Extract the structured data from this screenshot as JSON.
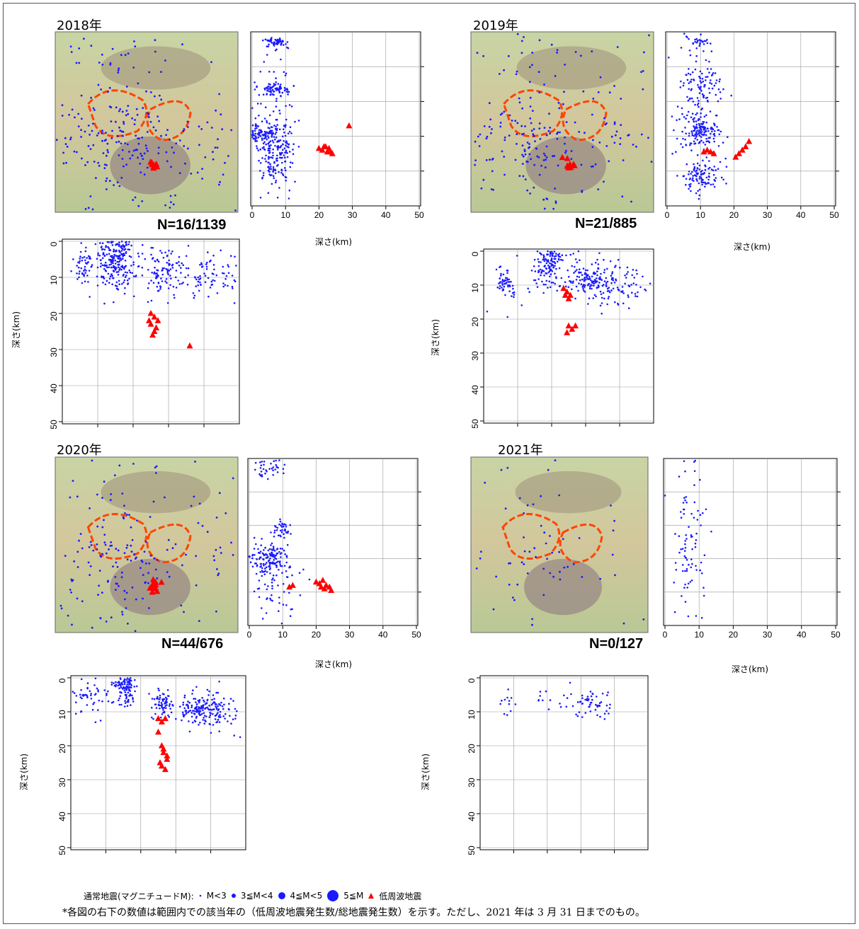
{
  "colors": {
    "normal": "#1a1aff",
    "lowfreq": "#ff0000",
    "grid": "#999999"
  },
  "axis": {
    "xlabel": "深さ(km)",
    "ylabel": "深さ(km)"
  },
  "panels": [
    {
      "year": "2018年",
      "n_label": "N=16/1139"
    },
    {
      "year": "2019年",
      "n_label": "N=21/885"
    },
    {
      "year": "2020年",
      "n_label": "N=44/676"
    },
    {
      "year": "2021年",
      "n_label": "N=0/127"
    }
  ],
  "legend": {
    "prefix": "通常地震(マグニチュードM):",
    "items": [
      "M<3",
      "3≦M<4",
      "4≦M<5",
      "5≦M"
    ],
    "lowfreq": "低周波地震"
  },
  "note": "*各図の右下の数値は範囲内での該当年の（低周波地震発生数/総地震発生数）を示す。ただし、2021 年は 3 月 31 日までのもの。",
  "chart_data": [
    {
      "type": "scatter",
      "year": "2018年",
      "ew_section": {
        "xlabel": "深さ(km)",
        "xlim": [
          0,
          50
        ],
        "xticks": [
          0,
          10,
          20,
          30,
          40,
          50
        ],
        "normal_clusters": [
          {
            "depth": 7,
            "depth_sd": 1.5,
            "pos": 0.06,
            "pos_sd": 0.015,
            "n": 55
          },
          {
            "depth": 7,
            "depth_sd": 2.5,
            "pos": 0.33,
            "pos_sd": 0.02,
            "n": 65
          },
          {
            "depth": 4,
            "depth_sd": 3,
            "pos": 0.58,
            "pos_sd": 0.03,
            "n": 90
          },
          {
            "depth": 7,
            "depth_sd": 2.5,
            "pos": 0.72,
            "pos_sd": 0.08,
            "n": 140
          },
          {
            "depth": 7,
            "depth_sd": 4,
            "pos": 0.5,
            "pos_sd": 0.25,
            "n": 90
          }
        ],
        "lowfreq": [
          [
            20,
            0.67
          ],
          [
            21,
            0.68
          ],
          [
            22,
            0.66
          ],
          [
            23,
            0.67
          ],
          [
            24,
            0.7
          ],
          [
            22.5,
            0.69
          ],
          [
            21.5,
            0.66
          ],
          [
            23.5,
            0.69
          ],
          [
            29,
            0.54
          ]
        ]
      },
      "ns_section": {
        "ylabel": "深さ(km)",
        "ylim": [
          0,
          50
        ],
        "yticks": [
          0,
          10,
          20,
          30,
          40,
          50
        ],
        "normal_clusters": [
          {
            "pos": 0.12,
            "pos_sd": 0.02,
            "depth": 7,
            "depth_sd": 2,
            "n": 40
          },
          {
            "pos": 0.3,
            "pos_sd": 0.05,
            "depth": 5,
            "depth_sd": 4,
            "n": 200
          },
          {
            "pos": 0.57,
            "pos_sd": 0.05,
            "depth": 8,
            "depth_sd": 3,
            "n": 60
          },
          {
            "pos": 0.8,
            "pos_sd": 0.12,
            "depth": 10,
            "depth_sd": 3,
            "n": 90
          },
          {
            "pos": 0.45,
            "pos_sd": 0.3,
            "depth": 8,
            "depth_sd": 5,
            "n": 80
          }
        ],
        "lowfreq": [
          [
            0.5,
            20
          ],
          [
            0.52,
            21
          ],
          [
            0.5,
            23
          ],
          [
            0.53,
            24
          ],
          [
            0.51,
            26
          ],
          [
            0.49,
            22
          ],
          [
            0.54,
            22
          ],
          [
            0.52,
            25
          ],
          [
            0.72,
            29
          ]
        ]
      }
    },
    {
      "type": "scatter",
      "year": "2019年",
      "ew_section": {
        "xlabel": "深さ(km)",
        "xlim": [
          0,
          50
        ],
        "xticks": [
          0,
          10,
          20,
          30,
          40,
          50
        ],
        "normal_clusters": [
          {
            "depth": 9,
            "depth_sd": 2,
            "pos": 0.05,
            "pos_sd": 0.015,
            "n": 25
          },
          {
            "depth": 10,
            "depth_sd": 3,
            "pos": 0.3,
            "pos_sd": 0.08,
            "n": 80
          },
          {
            "depth": 10,
            "depth_sd": 3,
            "pos": 0.57,
            "pos_sd": 0.05,
            "n": 120
          },
          {
            "depth": 10,
            "depth_sd": 3,
            "pos": 0.83,
            "pos_sd": 0.04,
            "n": 90
          },
          {
            "depth": 8,
            "depth_sd": 3,
            "pos": 0.55,
            "pos_sd": 0.25,
            "n": 90
          }
        ],
        "lowfreq": [
          [
            11,
            0.69
          ],
          [
            12,
            0.68
          ],
          [
            13,
            0.69
          ],
          [
            14,
            0.7
          ],
          [
            20.5,
            0.72
          ],
          [
            21.5,
            0.7
          ],
          [
            22.5,
            0.68
          ],
          [
            23.5,
            0.66
          ],
          [
            24.5,
            0.63
          ]
        ]
      },
      "ns_section": {
        "ylabel": "深さ(km)",
        "ylim": [
          0,
          50
        ],
        "yticks": [
          0,
          10,
          20,
          30,
          40,
          50
        ],
        "normal_clusters": [
          {
            "pos": 0.13,
            "pos_sd": 0.03,
            "depth": 9,
            "depth_sd": 2,
            "n": 50
          },
          {
            "pos": 0.38,
            "pos_sd": 0.04,
            "depth": 4,
            "depth_sd": 3,
            "n": 120
          },
          {
            "pos": 0.6,
            "pos_sd": 0.05,
            "depth": 8,
            "depth_sd": 2,
            "n": 70
          },
          {
            "pos": 0.75,
            "pos_sd": 0.12,
            "depth": 10,
            "depth_sd": 3,
            "n": 120
          },
          {
            "pos": 0.45,
            "pos_sd": 0.3,
            "depth": 8,
            "depth_sd": 5,
            "n": 60
          }
        ],
        "lowfreq": [
          [
            0.47,
            11
          ],
          [
            0.49,
            12
          ],
          [
            0.51,
            13
          ],
          [
            0.48,
            13
          ],
          [
            0.5,
            14
          ],
          [
            0.5,
            22
          ],
          [
            0.52,
            23
          ],
          [
            0.54,
            22
          ],
          [
            0.49,
            24
          ]
        ]
      }
    },
    {
      "type": "scatter",
      "year": "2020年",
      "ew_section": {
        "xlabel": "深さ(km)",
        "xlim": [
          0,
          50
        ],
        "xticks": [
          0,
          10,
          20,
          30,
          40,
          50
        ],
        "normal_clusters": [
          {
            "depth": 6,
            "depth_sd": 2,
            "pos": 0.05,
            "pos_sd": 0.03,
            "n": 40
          },
          {
            "depth": 10,
            "depth_sd": 1.5,
            "pos": 0.43,
            "pos_sd": 0.03,
            "n": 35
          },
          {
            "depth": 6,
            "depth_sd": 3,
            "pos": 0.6,
            "pos_sd": 0.05,
            "n": 130
          },
          {
            "depth": 8,
            "depth_sd": 4,
            "pos": 0.72,
            "pos_sd": 0.15,
            "n": 60
          }
        ],
        "lowfreq": [
          [
            12,
            0.77
          ],
          [
            13,
            0.76
          ],
          [
            20,
            0.74
          ],
          [
            21,
            0.75
          ],
          [
            22,
            0.73
          ],
          [
            23,
            0.76
          ],
          [
            24,
            0.77
          ],
          [
            21.5,
            0.77
          ],
          [
            22.5,
            0.78
          ],
          [
            24.5,
            0.79
          ]
        ]
      },
      "ns_section": {
        "ylabel": "深さ(km)",
        "ylim": [
          0,
          50
        ],
        "yticks": [
          0,
          10,
          20,
          30,
          40,
          50
        ],
        "normal_clusters": [
          {
            "pos": 0.1,
            "pos_sd": 0.05,
            "depth": 6,
            "depth_sd": 3,
            "n": 50
          },
          {
            "pos": 0.31,
            "pos_sd": 0.03,
            "depth": 3,
            "depth_sd": 3,
            "n": 110
          },
          {
            "pos": 0.52,
            "pos_sd": 0.03,
            "depth": 8,
            "depth_sd": 2,
            "n": 60
          },
          {
            "pos": 0.73,
            "pos_sd": 0.08,
            "depth": 9,
            "depth_sd": 2,
            "n": 160
          },
          {
            "pos": 0.85,
            "pos_sd": 0.06,
            "depth": 10,
            "depth_sd": 4,
            "n": 40
          }
        ],
        "lowfreq": [
          [
            0.5,
            12
          ],
          [
            0.52,
            13
          ],
          [
            0.54,
            12
          ],
          [
            0.5,
            16
          ],
          [
            0.52,
            20
          ],
          [
            0.53,
            22
          ],
          [
            0.55,
            24
          ],
          [
            0.51,
            25
          ],
          [
            0.53,
            21
          ],
          [
            0.55,
            23
          ],
          [
            0.52,
            26
          ],
          [
            0.54,
            27
          ]
        ]
      }
    },
    {
      "type": "scatter",
      "year": "2021年",
      "ew_section": {
        "xlabel": "深さ(km)",
        "xlim": [
          0,
          50
        ],
        "xticks": [
          0,
          10,
          20,
          30,
          40,
          50
        ],
        "normal_clusters": [
          {
            "depth": 7,
            "depth_sd": 3,
            "pos": 0.5,
            "pos_sd": 0.3,
            "n": 90
          }
        ],
        "lowfreq": []
      },
      "ns_section": {
        "ylabel": "深さ(km)",
        "ylim": [
          0,
          50
        ],
        "yticks": [
          0,
          10,
          20,
          30,
          40,
          50
        ],
        "normal_clusters": [
          {
            "pos": 0.17,
            "pos_sd": 0.02,
            "depth": 8,
            "depth_sd": 2,
            "n": 12
          },
          {
            "pos": 0.35,
            "pos_sd": 0.04,
            "depth": 5,
            "depth_sd": 2,
            "n": 8
          },
          {
            "pos": 0.65,
            "pos_sd": 0.08,
            "depth": 8,
            "depth_sd": 2,
            "n": 60
          }
        ],
        "lowfreq": []
      }
    }
  ]
}
